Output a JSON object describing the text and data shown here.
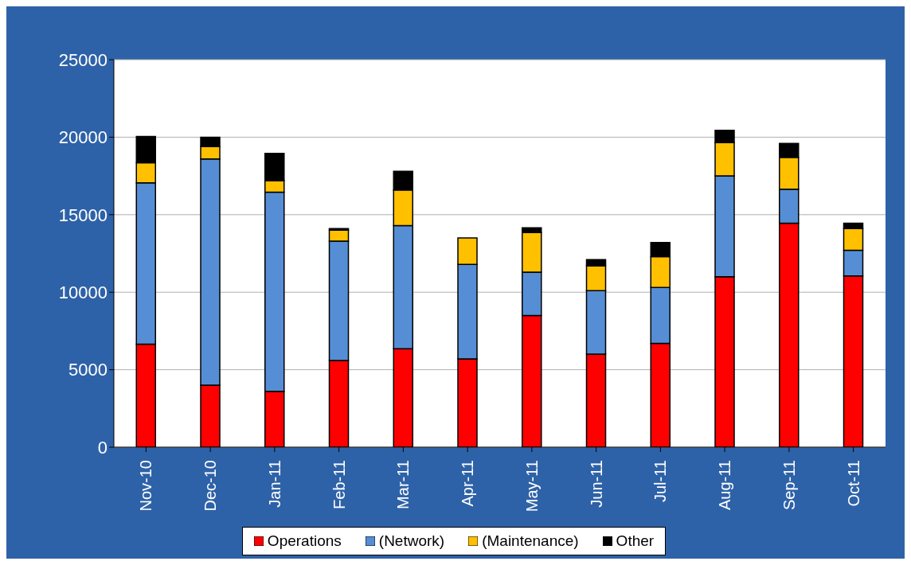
{
  "chart_data": {
    "type": "bar",
    "stacked": true,
    "categories": [
      "Nov-10",
      "Dec-10",
      "Jan-11",
      "Feb-11",
      "Mar-11",
      "Apr-11",
      "May-11",
      "Jun-11",
      "Jul-11",
      "Aug-11",
      "Sep-11",
      "Oct-11"
    ],
    "series": [
      {
        "name": "Operations",
        "color": "#ff0000",
        "values": [
          6650,
          4000,
          3600,
          5600,
          6350,
          5700,
          8500,
          6000,
          6700,
          11000,
          14450,
          11050
        ]
      },
      {
        "name": "(Network)",
        "color": "#558ed5",
        "values": [
          10400,
          14600,
          12850,
          7700,
          7950,
          6100,
          2800,
          4100,
          3600,
          6500,
          2200,
          1650
        ]
      },
      {
        "name": "(Maintenance)",
        "color": "#ffc000",
        "values": [
          1300,
          800,
          750,
          700,
          2300,
          1700,
          2550,
          1600,
          2000,
          2150,
          2050,
          1400
        ]
      },
      {
        "name": "Other",
        "color": "#000000",
        "values": [
          1700,
          600,
          1750,
          100,
          1200,
          0,
          300,
          400,
          900,
          800,
          900,
          350
        ]
      }
    ],
    "ylim": [
      0,
      25000
    ],
    "yticks": [
      0,
      5000,
      10000,
      15000,
      20000,
      25000
    ],
    "grid": "y",
    "legend": "bottom"
  }
}
